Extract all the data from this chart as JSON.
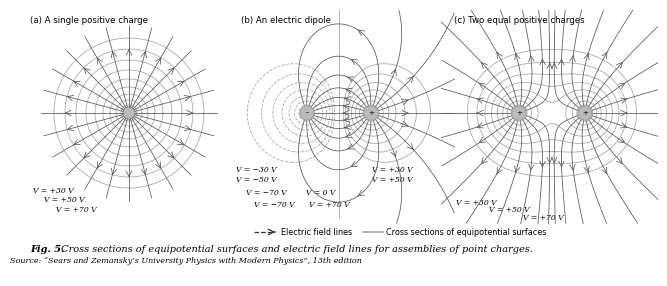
{
  "title_a": "(a) A single positive charge",
  "title_b": "(b) An electric dipole",
  "title_c": "(c) Two equal positive charges",
  "fig_caption_bold": "Fig. 5.",
  "fig_caption_italic": " Cross sections of equipotential surfaces and electric field lines for assemblies of point charges.",
  "fig_source": "Source: “Sears and Zemansky’s University Physics with Modern Physics”, 13th edition",
  "legend_field": "Electric field lines",
  "legend_equip": "Cross sections of equipotential surfaces",
  "labels_a": [
    "V = +30 V",
    "V = +50 V",
    "V = +70 V"
  ],
  "labels_b_left": [
    "V = −30 V",
    "V = −50 V",
    "V = −70 V"
  ],
  "labels_b_center": "V = 0 V",
  "labels_b_right_30": "V = +30 V",
  "labels_b_right_50": "V = +50 V",
  "labels_b_right_70": "V = +70 V",
  "labels_c": [
    "V = +30 V",
    "V = +50 V",
    "V = +70 V"
  ],
  "bg_color": "#ffffff",
  "equip_color": "#aaaaaa",
  "field_color": "#555555",
  "text_color": "#000000",
  "charge_color": "#bbbbbb"
}
